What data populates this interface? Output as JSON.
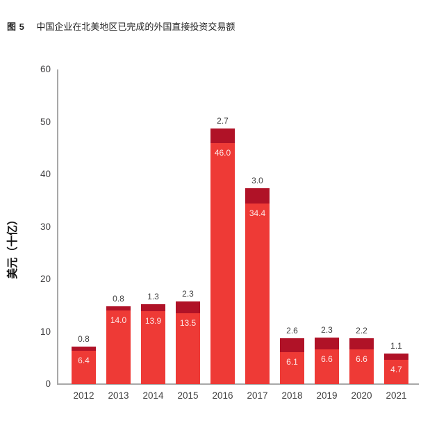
{
  "title": {
    "label": "图 5",
    "text": "中国企业在北美地区已完成的外国直接投资交易额"
  },
  "chart_data": {
    "type": "bar",
    "stacked": true,
    "title": "中国企业在北美地区已完成的外国直接投资交易额",
    "categories": [
      "2012",
      "2013",
      "2014",
      "2015",
      "2016",
      "2017",
      "2018",
      "2019",
      "2020",
      "2021"
    ],
    "series": [
      {
        "name": "bottom-segment",
        "color": "#ee3a36",
        "values": [
          6.4,
          14.0,
          13.9,
          13.5,
          46.0,
          34.4,
          6.1,
          6.6,
          6.6,
          4.7
        ],
        "label_style": "white-inside-bar"
      },
      {
        "name": "top-segment",
        "color": "#b01227",
        "values": [
          0.8,
          0.8,
          1.3,
          2.3,
          2.7,
          3.0,
          2.6,
          2.3,
          2.2,
          1.1
        ],
        "label_style": "dark-above-bar"
      }
    ],
    "xlabel": "",
    "ylabel": "美元（十亿）",
    "ylim": [
      0,
      60
    ],
    "yticks": [
      0,
      10,
      20,
      30,
      40,
      50,
      60
    ],
    "grid": false,
    "legend": null
  },
  "colors": {
    "bright_red": "#ee3a36",
    "dark_red": "#b01227",
    "axis_line": "#a8a8a8",
    "tick_text": "#414042",
    "title_text": "#222222"
  }
}
